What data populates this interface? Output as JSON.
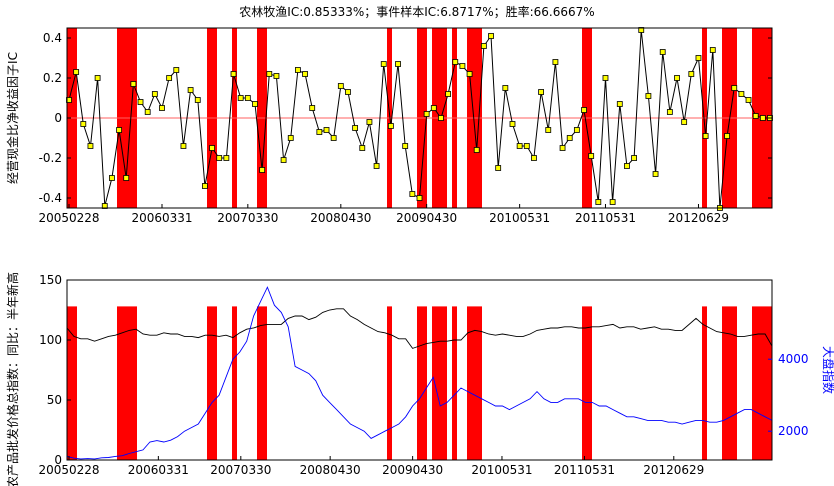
{
  "chart_data": [
    {
      "type": "line",
      "title": "农林牧渔IC:0.85333%；事件样本IC:6.8717%；胜率:66.6667%",
      "ylabel": "经营现金比净收益因子IC",
      "ylim": [
        -0.45,
        0.45
      ],
      "yticks": [
        -0.4,
        -0.2,
        0,
        0.2,
        0.4
      ],
      "xtick_labels": [
        "20050228",
        "20060331",
        "20070330",
        "20080430",
        "20090430",
        "20100531",
        "20110531",
        "20120629"
      ],
      "xtick_index": [
        0,
        13,
        25,
        38,
        50,
        63,
        75,
        88
      ],
      "n_points": 103,
      "zero_line": true,
      "values": [
        0.09,
        0.23,
        -0.03,
        -0.14,
        0.2,
        -0.44,
        -0.3,
        -0.06,
        -0.3,
        0.17,
        0.08,
        0.03,
        0.12,
        0.05,
        0.2,
        0.24,
        -0.14,
        0.14,
        0.09,
        -0.34,
        -0.15,
        -0.2,
        -0.2,
        0.22,
        0.1,
        0.1,
        0.07,
        -0.26,
        0.22,
        0.21,
        -0.21,
        -0.1,
        0.24,
        0.22,
        0.05,
        -0.07,
        -0.06,
        -0.1,
        0.16,
        0.13,
        -0.05,
        -0.15,
        -0.02,
        -0.24,
        0.27,
        -0.04,
        0.27,
        -0.14,
        -0.38,
        -0.4,
        0.02,
        0.05,
        0.0,
        0.12,
        0.28,
        0.26,
        0.22,
        -0.16,
        0.36,
        0.41,
        -0.25,
        0.15,
        -0.03,
        -0.14,
        -0.14,
        -0.2,
        0.13,
        -0.06,
        0.28,
        -0.15,
        -0.1,
        -0.06,
        0.04,
        -0.19,
        -0.42,
        0.2,
        -0.42,
        0.07,
        -0.24,
        -0.2,
        0.44,
        0.11,
        -0.28,
        0.33,
        0.03,
        0.2,
        -0.02,
        0.22,
        0.3,
        -0.09,
        0.34,
        -0.45,
        -0.09,
        0.15,
        0.12,
        0.09,
        0.01,
        0.0,
        0.0
      ],
      "highlight_bands": [
        [
          0,
          1
        ],
        [
          10,
          13
        ],
        [
          28,
          29
        ],
        [
          33,
          33
        ],
        [
          38,
          39
        ],
        [
          64,
          64
        ],
        [
          70,
          71
        ],
        [
          73,
          75
        ],
        [
          77,
          77
        ],
        [
          80,
          82
        ],
        [
          103,
          104
        ],
        [
          127,
          127
        ],
        [
          131,
          133
        ],
        [
          137,
          140
        ]
      ],
      "series_color": "#000000",
      "marker_color": "#ffff00",
      "band_color": "#ff0000",
      "zero_line_color": "#ff6060"
    },
    {
      "type": "line",
      "ylabel": "农产品批发价格总指数：同比：半年新高",
      "ylabel_right": "大盘指数",
      "ylim": [
        0,
        150
      ],
      "yticks": [
        0,
        50,
        100,
        150
      ],
      "yticks_right": [
        2000,
        4000
      ],
      "ylim_right": [
        1200,
        6200
      ],
      "xtick_labels": [
        "20050228",
        "20060331",
        "20070330",
        "20080430",
        "20090430",
        "20100531",
        "20110531",
        "20120629"
      ],
      "xtick_index": [
        0,
        13,
        25,
        38,
        50,
        63,
        75,
        88
      ],
      "n_points": 103,
      "bar_height": 128,
      "series": [
        {
          "color": "#000000",
          "axis": "left",
          "values": [
            110,
            103,
            101,
            101,
            99,
            101,
            103,
            104,
            106,
            108,
            109,
            105,
            104,
            104,
            106,
            105,
            105,
            103,
            103,
            102,
            104,
            104,
            103,
            104,
            102,
            106,
            109,
            110,
            112,
            113,
            113,
            113,
            118,
            120,
            120,
            117,
            119,
            123,
            125,
            126,
            126,
            120,
            117,
            113,
            110,
            107,
            106,
            104,
            101,
            101,
            93,
            95,
            97,
            98,
            99,
            99,
            100,
            100,
            106,
            108,
            107,
            105,
            104,
            105,
            104,
            103,
            103,
            105,
            108,
            109,
            110,
            110,
            111,
            111,
            110,
            110,
            111,
            111,
            112,
            113,
            110,
            111,
            111,
            109,
            110,
            111,
            109,
            109,
            108,
            108,
            113,
            118,
            113,
            110,
            107,
            106,
            105,
            103,
            103,
            104,
            105,
            105,
            95
          ]
        },
        {
          "color": "#0000ff",
          "axis": "right",
          "values": [
            1300,
            1250,
            1230,
            1240,
            1230,
            1260,
            1270,
            1300,
            1320,
            1380,
            1430,
            1480,
            1700,
            1740,
            1700,
            1750,
            1850,
            2000,
            2100,
            2200,
            2500,
            2800,
            3000,
            3500,
            4000,
            4200,
            4500,
            5200,
            5600,
            6000,
            5500,
            5300,
            4900,
            3800,
            3700,
            3600,
            3400,
            3000,
            2800,
            2600,
            2400,
            2200,
            2100,
            2000,
            1800,
            1900,
            2000,
            2100,
            2200,
            2400,
            2700,
            2900,
            3200,
            3500,
            2700,
            2800,
            3000,
            3200,
            3100,
            3000,
            2900,
            2800,
            2700,
            2700,
            2600,
            2700,
            2800,
            2900,
            3100,
            2900,
            2800,
            2800,
            2900,
            2900,
            2900,
            2800,
            2800,
            2700,
            2700,
            2600,
            2500,
            2400,
            2400,
            2350,
            2300,
            2300,
            2300,
            2250,
            2250,
            2200,
            2250,
            2300,
            2300,
            2250,
            2250,
            2300,
            2400,
            2500,
            2600,
            2600,
            2500,
            2400,
            2300
          ]
        }
      ],
      "highlight_bands": [
        [
          0,
          1
        ],
        [
          10,
          13
        ],
        [
          28,
          29
        ],
        [
          33,
          33
        ],
        [
          38,
          39
        ],
        [
          64,
          64
        ],
        [
          70,
          71
        ],
        [
          73,
          75
        ],
        [
          77,
          77
        ],
        [
          80,
          82
        ],
        [
          103,
          104
        ],
        [
          127,
          127
        ],
        [
          131,
          133
        ],
        [
          137,
          140
        ]
      ],
      "band_color": "#ff0000"
    }
  ]
}
